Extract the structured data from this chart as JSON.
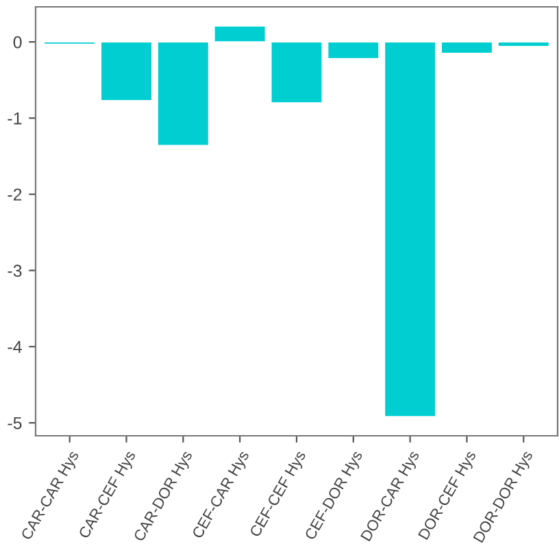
{
  "chart_data": {
    "type": "bar",
    "categories": [
      "CAR-CAR Hys",
      "CAR-CEF Hys",
      "CAR-DOR Hys",
      "CEF-CAR Hys",
      "CEF-CEF Hys",
      "CEF-DOR Hys",
      "DOR-CAR Hys",
      "DOR-CEF Hys",
      "DOR-DOR Hys"
    ],
    "values": [
      -0.03,
      -0.77,
      -1.36,
      0.21,
      -0.8,
      -0.22,
      -4.92,
      -0.15,
      -0.06
    ],
    "color": "#00ced1",
    "ylim": [
      -5.17,
      0.46
    ],
    "yticks": [
      -5,
      -4,
      -3,
      -2,
      -1,
      0
    ],
    "grid": false
  }
}
